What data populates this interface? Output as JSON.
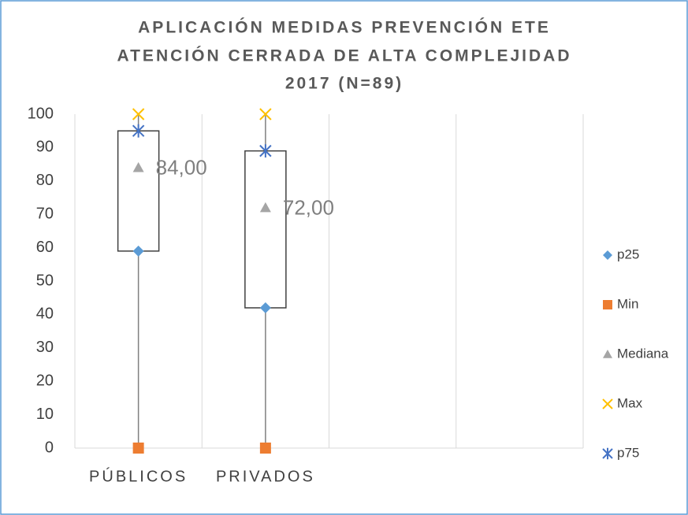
{
  "chart_data": {
    "type": "box",
    "title": [
      "APLICACIÓN MEDIDAS PREVENCIÓN ETE",
      "ATENCIÓN CERRADA DE ALTA COMPLEJIDAD",
      "2017 (N=89)"
    ],
    "categories": [
      "PÚBLICOS",
      "PRIVADOS",
      null,
      null
    ],
    "series": [
      {
        "name": "p25",
        "color": "#5b9bd5",
        "marker": "diamond",
        "values": [
          59,
          42,
          null,
          null
        ]
      },
      {
        "name": "Min",
        "color": "#ed7d31",
        "marker": "square",
        "values": [
          0,
          0,
          null,
          null
        ]
      },
      {
        "name": "Mediana",
        "color": "#a5a5a5",
        "marker": "triangle",
        "values": [
          84,
          72,
          null,
          null
        ],
        "value_labels": [
          "84,00",
          "72,00",
          null,
          null
        ]
      },
      {
        "name": "Max",
        "color": "#ffc000",
        "marker": "x",
        "values": [
          100,
          100,
          null,
          null
        ]
      },
      {
        "name": "p75",
        "color": "#4472c4",
        "marker": "star",
        "values": [
          95,
          89,
          null,
          null
        ]
      }
    ],
    "ylim": [
      0,
      100
    ],
    "yticks": [
      0,
      10,
      20,
      30,
      40,
      50,
      60,
      70,
      80,
      90,
      100
    ],
    "legend": "right"
  }
}
